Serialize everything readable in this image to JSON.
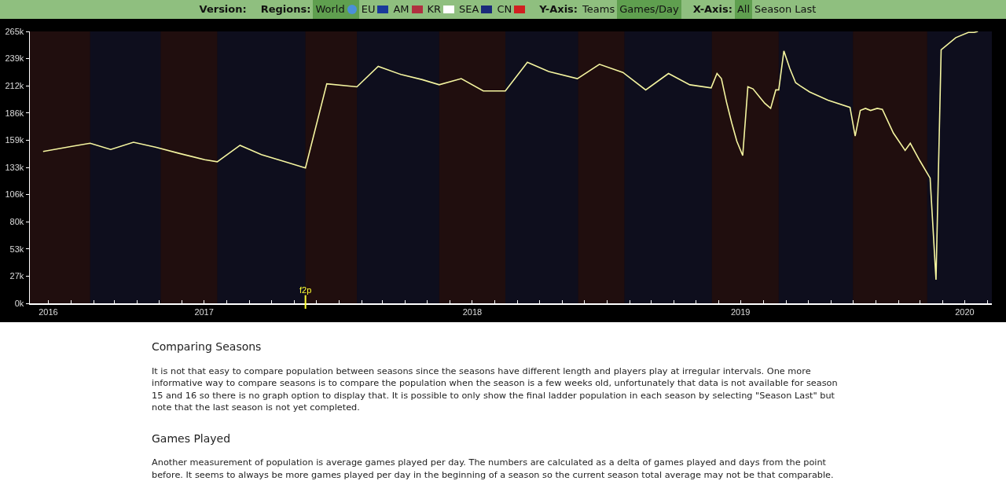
{
  "chart_data": {
    "type": "line",
    "x": [
      "2016-11-24",
      "2017-01-02",
      "2017-01-27",
      "2017-02-24",
      "2017-03-27",
      "2017-04-27",
      "2017-05-29",
      "2017-07-02",
      "2017-07-19",
      "2017-08-19",
      "2017-09-17",
      "2017-10-19",
      "2017-11-16",
      "2017-12-15",
      "2018-01-25",
      "2018-02-23",
      "2018-03-26",
      "2018-04-24",
      "2018-05-17",
      "2018-06-16",
      "2018-07-16",
      "2018-08-15",
      "2018-09-14",
      "2018-10-13",
      "2018-11-21",
      "2018-12-21",
      "2019-01-22",
      "2019-02-22",
      "2019-03-25",
      "2019-04-23",
      "2019-05-22",
      "2019-05-30",
      "2019-06-05",
      "2019-06-12",
      "2019-06-19",
      "2019-06-26",
      "2019-07-04",
      "2019-07-11",
      "2019-07-18",
      "2019-07-27",
      "2019-08-03",
      "2019-08-11",
      "2019-08-18",
      "2019-08-22",
      "2019-08-29",
      "2019-09-06",
      "2019-09-14",
      "2019-09-20",
      "2019-10-03",
      "2019-10-28",
      "2019-11-27",
      "2019-12-04",
      "2019-12-11",
      "2019-12-18",
      "2019-12-25",
      "2020-01-03",
      "2020-01-10",
      "2020-01-25",
      "2020-02-10",
      "2020-02-17",
      "2020-03-01",
      "2020-03-15",
      "2020-03-23",
      "2020-03-30",
      "2020-04-19",
      "2020-05-06",
      "2020-05-14",
      "2020-05-19"
    ],
    "series": [
      {
        "color": "#f5f5a0",
        "values": [
          148,
          153,
          156,
          150,
          157,
          152,
          146,
          140,
          138,
          154,
          145,
          138,
          132,
          214,
          211,
          231,
          223,
          218,
          213,
          219,
          207,
          207,
          235,
          226,
          219,
          233,
          225,
          208,
          224,
          213,
          210,
          224,
          219,
          196,
          176,
          158,
          144,
          211,
          209,
          201,
          195,
          190,
          208,
          208,
          246,
          229,
          215,
          212,
          206,
          198,
          191,
          163,
          188,
          190,
          188,
          190,
          189,
          166,
          149,
          156,
          139,
          122,
          23,
          247,
          259,
          264,
          264,
          265
        ]
      }
    ],
    "xlim": [
      "2016-11-06",
      "2020-06-07"
    ],
    "xticks": [
      {
        "value": "2016-12-01",
        "label": "2016"
      },
      {
        "value": "2017-01-01",
        "label": null
      },
      {
        "value": "2017-02-01",
        "label": null
      },
      {
        "value": "2017-03-01",
        "label": null
      },
      {
        "value": "2017-04-01",
        "label": null
      },
      {
        "value": "2017-05-01",
        "label": null
      },
      {
        "value": "2017-06-01",
        "label": null
      },
      {
        "value": "2017-07-01",
        "label": "2017"
      },
      {
        "value": "2017-08-01",
        "label": null
      },
      {
        "value": "2017-09-01",
        "label": null
      },
      {
        "value": "2017-10-01",
        "label": null
      },
      {
        "value": "2017-11-01",
        "label": null
      },
      {
        "value": "2017-12-01",
        "label": null
      },
      {
        "value": "2018-01-01",
        "label": null
      },
      {
        "value": "2018-02-01",
        "label": null
      },
      {
        "value": "2018-03-01",
        "label": null
      },
      {
        "value": "2018-04-01",
        "label": null
      },
      {
        "value": "2018-05-01",
        "label": null
      },
      {
        "value": "2018-06-01",
        "label": null
      },
      {
        "value": "2018-07-01",
        "label": "2018"
      },
      {
        "value": "2018-08-01",
        "label": null
      },
      {
        "value": "2018-09-01",
        "label": null
      },
      {
        "value": "2018-10-01",
        "label": null
      },
      {
        "value": "2018-11-01",
        "label": null
      },
      {
        "value": "2018-12-01",
        "label": null
      },
      {
        "value": "2019-01-01",
        "label": null
      },
      {
        "value": "2019-02-01",
        "label": null
      },
      {
        "value": "2019-03-01",
        "label": null
      },
      {
        "value": "2019-04-01",
        "label": null
      },
      {
        "value": "2019-05-01",
        "label": null
      },
      {
        "value": "2019-06-01",
        "label": null
      },
      {
        "value": "2019-07-01",
        "label": "2019"
      },
      {
        "value": "2019-08-01",
        "label": null
      },
      {
        "value": "2019-09-01",
        "label": null
      },
      {
        "value": "2019-10-01",
        "label": null
      },
      {
        "value": "2019-11-01",
        "label": null
      },
      {
        "value": "2019-12-01",
        "label": null
      },
      {
        "value": "2020-01-01",
        "label": null
      },
      {
        "value": "2020-02-01",
        "label": null
      },
      {
        "value": "2020-03-01",
        "label": null
      },
      {
        "value": "2020-04-01",
        "label": null
      },
      {
        "value": "2020-05-01",
        "label": "2020"
      },
      {
        "value": "2020-06-01",
        "label": null
      }
    ],
    "ylim": [
      0,
      265
    ],
    "yticks": [
      {
        "value": 0,
        "label": "0k"
      },
      {
        "value": 26.5,
        "label": "27k"
      },
      {
        "value": 53,
        "label": "53k"
      },
      {
        "value": 79.5,
        "label": "80k"
      },
      {
        "value": 106,
        "label": "106k"
      },
      {
        "value": 132.5,
        "label": "133k"
      },
      {
        "value": 159,
        "label": "159k"
      },
      {
        "value": 185.5,
        "label": "186k"
      },
      {
        "value": 212,
        "label": "212k"
      },
      {
        "value": 238.5,
        "label": "239k"
      },
      {
        "value": 265,
        "label": "265k"
      }
    ],
    "grid": false,
    "legend": false,
    "marker": "none",
    "line_style": "solid",
    "ref_lines": [
      {
        "axis": "x",
        "value": "2017-11-16",
        "label": "f2p",
        "color": "#ffff33"
      }
    ],
    "bands": [
      {
        "axis": "x",
        "from": "2016-11-06",
        "to": "2017-01-27",
        "color": "#e06060"
      },
      {
        "axis": "x",
        "from": "2017-01-27",
        "to": "2017-05-03",
        "color": "#6060d0"
      },
      {
        "axis": "x",
        "from": "2017-05-03",
        "to": "2017-07-19",
        "color": "#e06060"
      },
      {
        "axis": "x",
        "from": "2017-07-19",
        "to": "2017-11-16",
        "color": "#6060d0"
      },
      {
        "axis": "x",
        "from": "2017-11-16",
        "to": "2018-01-25",
        "color": "#e06060"
      },
      {
        "axis": "x",
        "from": "2018-01-25",
        "to": "2018-05-17",
        "color": "#6060d0"
      },
      {
        "axis": "x",
        "from": "2018-05-17",
        "to": "2018-08-15",
        "color": "#e06060"
      },
      {
        "axis": "x",
        "from": "2018-08-15",
        "to": "2018-11-22",
        "color": "#6060d0"
      },
      {
        "axis": "x",
        "from": "2018-11-22",
        "to": "2019-01-24",
        "color": "#e06060"
      },
      {
        "axis": "x",
        "from": "2019-01-24",
        "to": "2019-05-23",
        "color": "#6060d0"
      },
      {
        "axis": "x",
        "from": "2019-05-23",
        "to": "2019-08-22",
        "color": "#e06060"
      },
      {
        "axis": "x",
        "from": "2019-08-22",
        "to": "2019-12-01",
        "color": "#6060d0"
      },
      {
        "axis": "x",
        "from": "2019-12-01",
        "to": "2020-03-11",
        "color": "#e06060"
      },
      {
        "axis": "x",
        "from": "2020-03-11",
        "to": "2020-06-07",
        "color": "#6060d0"
      }
    ],
    "annotations": [
      "Version:",
      "Regions:",
      "World",
      "EU",
      "AM",
      "KR",
      "SEA",
      "CN",
      "Y-Axis:",
      "Teams",
      "Games/Day",
      "X-Axis:",
      "All",
      "Season Last",
      "Comparing Seasons",
      "It is not that easy to compare population between seasons since the seasons have different length and players play at irregular intervals. One more informative way to compare seasons is to compare the population when the season is a few weeks old, unfortunately that data is not available for season 15 and 16 so there is no graph option to display that. It is possible to only show the final ladder population in each season by selecting \"Season Last\" but note that the last season is not yet completed.",
      "Games Played",
      "Another measurement of population is average games played per day. The numbers are calculated as a delta of games played and days from the point before. It seems to always be more games played per day in the beginning of a season so the current season total average may not be that comparable."
    ]
  }
}
